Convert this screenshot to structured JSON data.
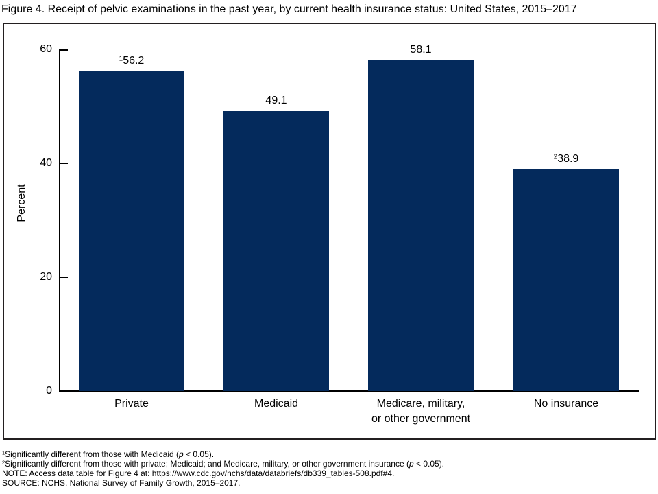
{
  "title": "Figure 4. Receipt of pelvic examinations in the past year, by current health insurance status: United States, 2015–2017",
  "chart_data": {
    "type": "bar",
    "categories": [
      "Private",
      "Medicaid",
      "Medicare, military,\nor other government",
      "No insurance"
    ],
    "values": [
      56.2,
      49.1,
      58.1,
      38.9
    ],
    "value_labels": [
      {
        "sup": "1",
        "text": "56.2"
      },
      {
        "sup": "",
        "text": "49.1"
      },
      {
        "sup": "",
        "text": "58.1"
      },
      {
        "sup": "2",
        "text": "38.9"
      }
    ],
    "title": "",
    "xlabel": "",
    "ylabel": "Percent",
    "yticks": [
      0,
      20,
      40,
      60
    ],
    "ylim": [
      0,
      60
    ],
    "grid": false,
    "legend": null,
    "bar_color": "#042a5c",
    "axis_color": "#000000"
  },
  "footnotes": [
    {
      "sup": "1",
      "before": "Significantly different from those with Medicaid (",
      "p": "p",
      "after": " < 0.05)."
    },
    {
      "sup": "2",
      "before": "Significantly different from those with private; Medicaid; and Medicare, military, or other government insurance (",
      "p": "p",
      "after": " < 0.05)."
    },
    {
      "sup": "",
      "before": "NOTE: Access data table for Figure 4 at: https://www.cdc.gov/nchs/data/databriefs/db339_tables-508.pdf#4.",
      "p": "",
      "after": ""
    },
    {
      "sup": "",
      "before": "SOURCE: NCHS, National Survey of Family Growth, 2015–2017.",
      "p": "",
      "after": ""
    }
  ]
}
